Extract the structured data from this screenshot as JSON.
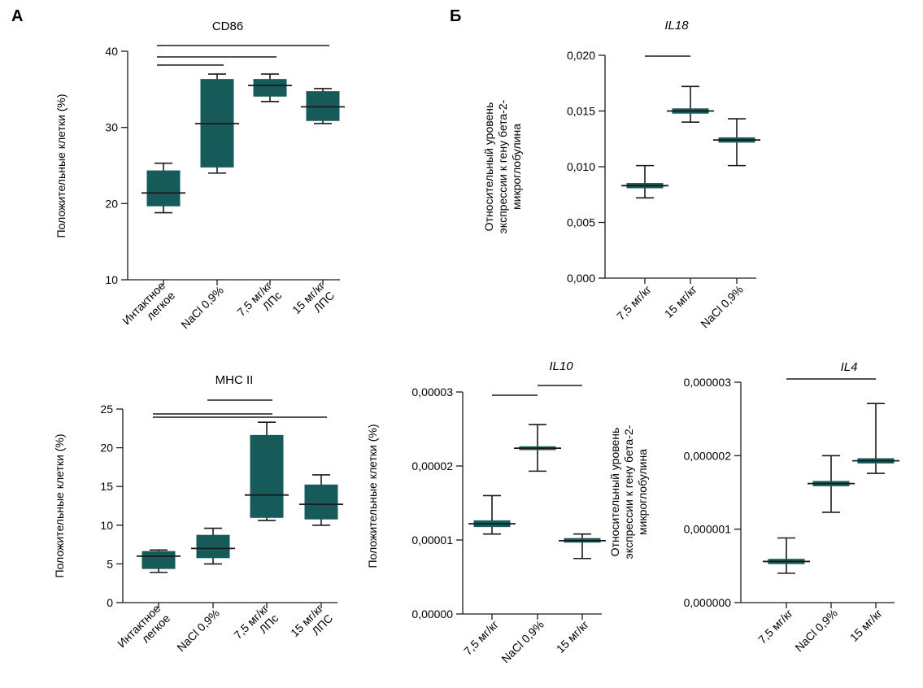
{
  "panels": {
    "a": "А",
    "b": "Б"
  },
  "colors": {
    "box": "#165a5a",
    "line": "#1a1a1a"
  },
  "chart_data": [
    {
      "type": "box",
      "title": "CD86",
      "ylabel": "Положительные клетки (%)",
      "ylim": [
        10,
        40
      ],
      "yticks": [
        "10",
        "20",
        "30",
        "40"
      ],
      "categories": [
        [
          "Интактное",
          "легкое"
        ],
        [
          "NaCl 0,9%"
        ],
        [
          "7,5 мг/кг",
          "ЛПс"
        ],
        [
          "15 мг/кг",
          "ЛПС"
        ]
      ],
      "boxes": [
        {
          "min": 18.8,
          "q1": 19.7,
          "median": 21.4,
          "q3": 24.3,
          "max": 25.3
        },
        {
          "min": 24.0,
          "q1": 24.8,
          "median": 30.5,
          "q3": 36.3,
          "max": 37.0
        },
        {
          "min": 33.4,
          "q1": 34.1,
          "median": 35.5,
          "q3": 36.3,
          "max": 37.0
        },
        {
          "min": 30.5,
          "q1": 30.9,
          "median": 32.7,
          "q3": 34.7,
          "max": 35.1
        }
      ],
      "comparisons": [
        {
          "from": 0,
          "to": 3
        },
        {
          "from": 0,
          "to": 2
        },
        {
          "from": 0,
          "to": 1
        }
      ],
      "grid": false
    },
    {
      "type": "box",
      "title": "MHC II",
      "ylabel": "Положительные клетки (%)",
      "ylim": [
        0,
        25
      ],
      "yticks": [
        "0",
        "5",
        "10",
        "15",
        "20",
        "25"
      ],
      "categories": [
        [
          "Интактное",
          "легкое"
        ],
        [
          "NaCl 0,9%"
        ],
        [
          "7,5 мг/кг",
          "ЛПс"
        ],
        [
          "15 мг/кг",
          "ЛПС"
        ]
      ],
      "boxes": [
        {
          "min": 3.9,
          "q1": 4.4,
          "median": 6.0,
          "q3": 6.6,
          "max": 6.8
        },
        {
          "min": 5.0,
          "q1": 5.8,
          "median": 7.0,
          "q3": 8.7,
          "max": 9.6
        },
        {
          "min": 10.6,
          "q1": 11.0,
          "median": 13.9,
          "q3": 21.6,
          "max": 23.3
        },
        {
          "min": 10.0,
          "q1": 10.8,
          "median": 12.7,
          "q3": 15.2,
          "max": 16.5
        }
      ],
      "comparisons": [
        {
          "from": 1,
          "to": 2
        },
        {
          "from": 0,
          "to": 2
        },
        {
          "from": 0,
          "to": 3
        }
      ],
      "grid": false
    },
    {
      "type": "box",
      "title": "IL18",
      "ylabel": [
        "Относительный уровень",
        "экспрессии к гену бета-2-",
        "микроглобулина"
      ],
      "ylim": [
        0,
        0.02
      ],
      "yticks": [
        "0,000",
        "0,005",
        "0,010",
        "0,015",
        "0,020"
      ],
      "categories": [
        [
          "7,5 мг/кг"
        ],
        [
          "15 мг/кг"
        ],
        [
          "NaCl 0,9%"
        ]
      ],
      "boxes": [
        {
          "min": 0.0072,
          "q1": 0.0081,
          "median": 0.0083,
          "q3": 0.0085,
          "max": 0.0101
        },
        {
          "min": 0.014,
          "q1": 0.0148,
          "median": 0.015,
          "q3": 0.0152,
          "max": 0.0172
        },
        {
          "min": 0.0101,
          "q1": 0.0122,
          "median": 0.0124,
          "q3": 0.0126,
          "max": 0.0143
        }
      ],
      "comparisons": [
        {
          "from": 0,
          "to": 1
        }
      ],
      "grid": false
    },
    {
      "type": "box",
      "title": "IL10",
      "ylabel": [
        "Положительные клетки (%)"
      ],
      "ylim": [
        0,
        3e-05
      ],
      "yticks": [
        "0,00000",
        "0,00001",
        "0,00002",
        "0,00003"
      ],
      "categories": [
        [
          "7,5 мг/кг"
        ],
        [
          "NaCl 0,9%"
        ],
        [
          "15 мг/кг"
        ]
      ],
      "boxes": [
        {
          "min": 1.08e-05,
          "q1": 1.18e-05,
          "median": 1.22e-05,
          "q3": 1.26e-05,
          "max": 1.6e-05
        },
        {
          "min": 1.93e-05,
          "q1": 2.22e-05,
          "median": 2.24e-05,
          "q3": 2.26e-05,
          "max": 2.56e-05
        },
        {
          "min": 7.5e-06,
          "q1": 9.7e-06,
          "median": 9.9e-06,
          "q3": 1.02e-05,
          "max": 1.08e-05
        }
      ],
      "comparisons": [
        {
          "from": 0,
          "to": 1
        },
        {
          "from": 1,
          "to": 2
        }
      ],
      "grid": false
    },
    {
      "type": "box",
      "title": "IL4",
      "ylabel": [
        "Относительный уровень",
        "экспрессии к гену бета-2-",
        "микроглобулина"
      ],
      "ylim": [
        0,
        3e-06
      ],
      "yticks": [
        "0,000000",
        "0,000001",
        "0,000002",
        "0,000003"
      ],
      "categories": [
        [
          "7,5 мг/кг"
        ],
        [
          "NaCl 0,9%"
        ],
        [
          "15 мг/кг"
        ]
      ],
      "boxes": [
        {
          "min": 4e-07,
          "q1": 5.3e-07,
          "median": 5.6e-07,
          "q3": 5.9e-07,
          "max": 8.8e-07
        },
        {
          "min": 1.23e-06,
          "q1": 1.59e-06,
          "median": 1.62e-06,
          "q3": 1.65e-06,
          "max": 2e-06
        },
        {
          "min": 1.76e-06,
          "q1": 1.9e-06,
          "median": 1.93e-06,
          "q3": 1.96e-06,
          "max": 2.71e-06
        }
      ],
      "comparisons": [
        {
          "from": 0,
          "to": 2
        }
      ],
      "grid": false
    }
  ]
}
